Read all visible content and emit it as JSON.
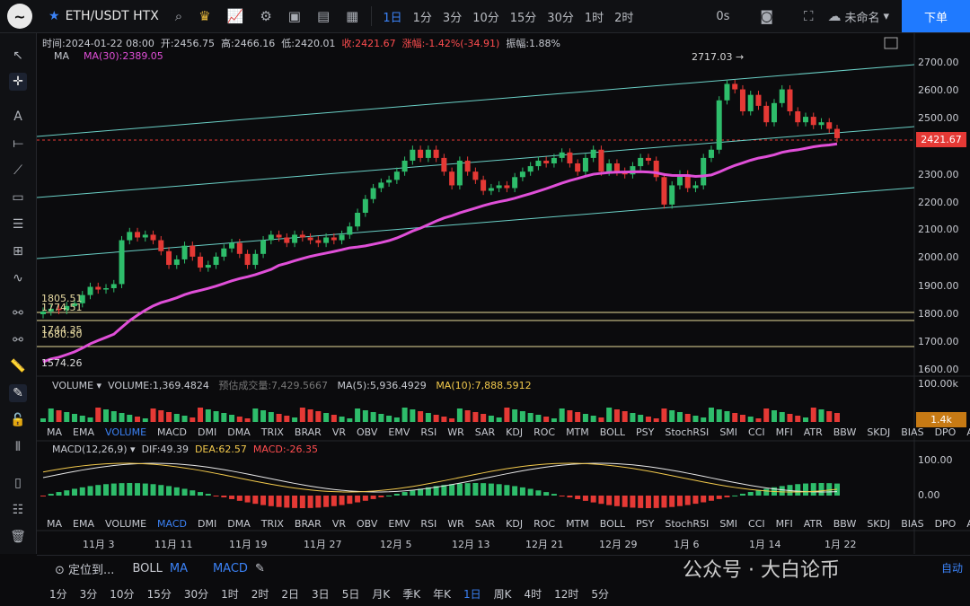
{
  "header": {
    "symbol": "ETH/USDT HTX",
    "timeframes": [
      "1日",
      "1分",
      "3分",
      "10分",
      "15分",
      "30分",
      "1时",
      "2时"
    ],
    "active_tf": "1日",
    "right_label1": "0s",
    "layout_name": "未命名",
    "order_button": "下单"
  },
  "ohlc": {
    "time": "时间:2024-01-22 08:00",
    "open": "开:2456.75",
    "high": "高:2466.16",
    "low": "低:2420.01",
    "close": "收:2421.67",
    "change": "涨幅:-1.42%(-34.91)",
    "amplitude": "振幅:1.88%"
  },
  "ma": {
    "label": "MA",
    "value": "MA(30):2389.05"
  },
  "price_axis": [
    "2700.00",
    "2600.00",
    "2500.00",
    "2400.00",
    "2300.00",
    "2200.00",
    "2100.00",
    "2000.00",
    "1900.00",
    "1800.00",
    "1700.00",
    "1600.00"
  ],
  "last_price": "2421.67",
  "high_marker": "2717.03 →",
  "hlines": [
    "1805.51",
    "1774.51",
    "1744.35",
    "1680.50",
    "1574.26"
  ],
  "volume": {
    "label": "VOLUME",
    "value": "VOLUME:1,369.4824",
    "estimate": "预估成交量:7,429.5667",
    "ma5": "MA(5):5,936.4929",
    "ma10": "MA(10):7,888.5912",
    "axis_top": "100.00k",
    "tag": "1.4k"
  },
  "macd": {
    "label": "MACD(12,26,9)",
    "dif": "DIF:49.39",
    "dea": "DEA:62.57",
    "macd": "MACD:-26.35",
    "axis": [
      "100.00",
      "0.00"
    ]
  },
  "indicator_tabs": [
    "MA",
    "EMA",
    "VOLUME",
    "MACD",
    "DMI",
    "DMA",
    "TRIX",
    "BRAR",
    "VR",
    "OBV",
    "EMV",
    "RSI",
    "WR",
    "SAR",
    "KDJ",
    "ROC",
    "MTM",
    "BOLL",
    "PSY",
    "StochRSI",
    "SMI",
    "CCI",
    "MFI",
    "ATR",
    "BBW",
    "SKDJ",
    "BIAS",
    "DPO",
    "AO"
  ],
  "date_axis": [
    "11月 3",
    "11月 11",
    "11月 19",
    "11月 27",
    "12月 5",
    "12月 13",
    "12月 21",
    "12月 29",
    "1月 6",
    "1月 14",
    "1月 22"
  ],
  "bottom_bar": {
    "locate": "定位到...",
    "boll": "BOLL",
    "ma": "MA",
    "macd": "MACD"
  },
  "bottom_tfs": [
    "1分",
    "3分",
    "10分",
    "15分",
    "30分",
    "1时",
    "2时",
    "2日",
    "3日",
    "5日",
    "月K",
    "季K",
    "年K",
    "1日",
    "周K",
    "4时",
    "12时",
    "5分"
  ],
  "watermark": "公众号 · 大白论币",
  "auto": "自动",
  "colors": {
    "up": "#2ebd6b",
    "down": "#e53935",
    "ma": "#e04fd8",
    "channel": "#6bd1c7",
    "hline": "#e8dc9c"
  }
}
